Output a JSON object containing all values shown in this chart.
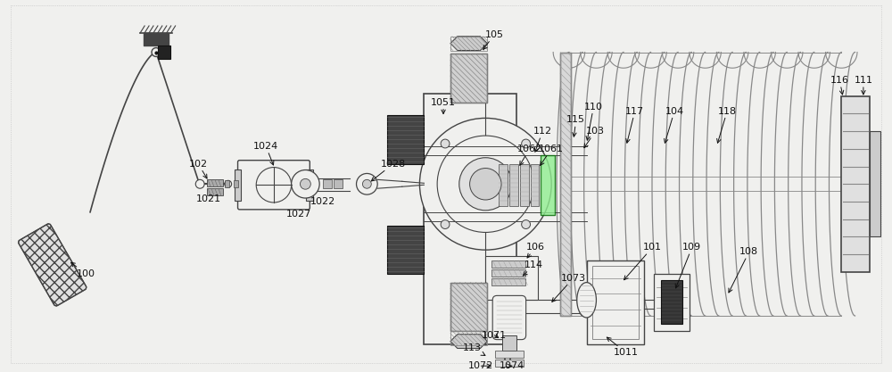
{
  "bg_color": "#f0f0ee",
  "line_color": "#888888",
  "dark_color": "#444444",
  "black_color": "#111111",
  "green_color": "#006600",
  "white_color": "#f8f8f8",
  "figsize": [
    10.0,
    4.17
  ],
  "dpi": 100,
  "border_color": "#aaaaaa"
}
